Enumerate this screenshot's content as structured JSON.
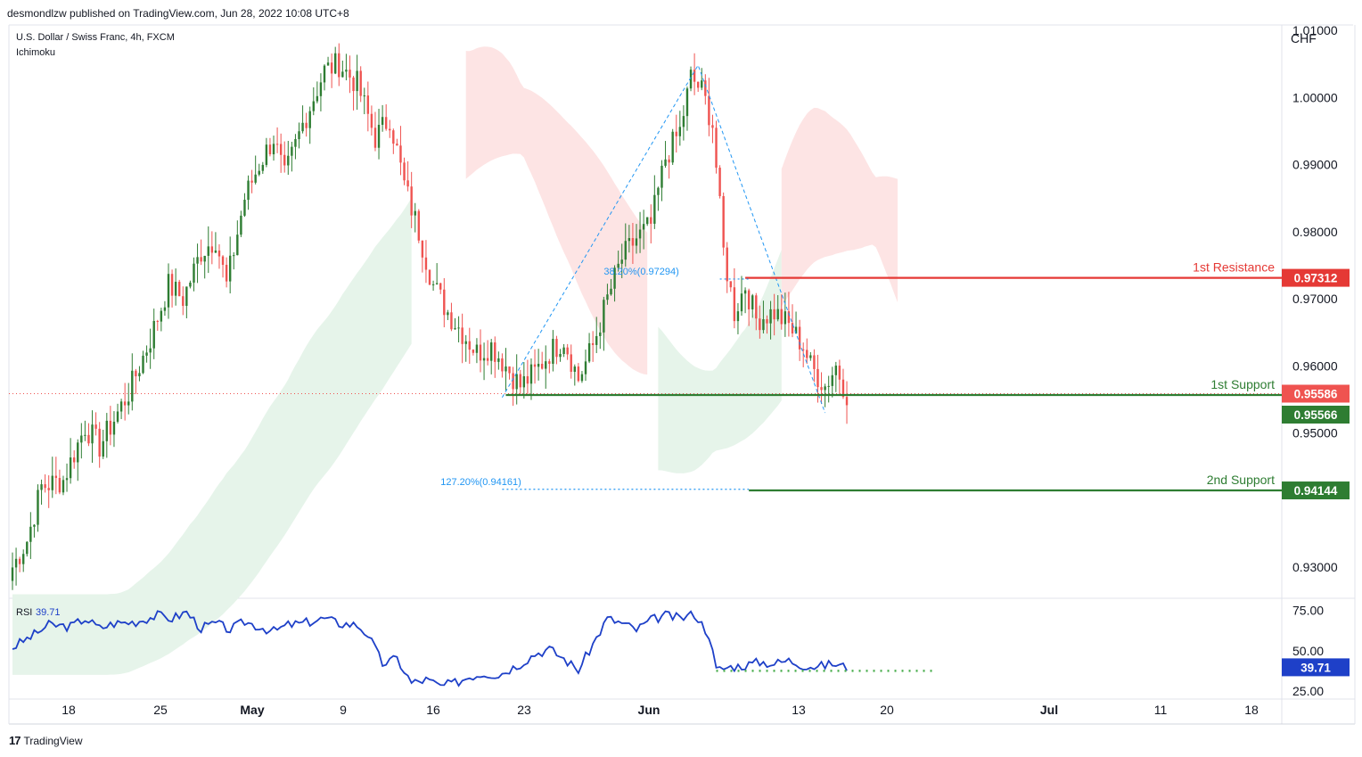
{
  "header": {
    "published": "desmondlzw published on TradingView.com, Jun 28, 2022 10:08 UTC+8"
  },
  "legend": {
    "symbol": "U.S. Dollar / Swiss Franc, 4h, FXCM",
    "indicator": "Ichimoku"
  },
  "footer": {
    "logo": "17",
    "brand": "TradingView"
  },
  "colors": {
    "bull": "#26a69a",
    "bear": "#ef5350",
    "bull_candle": "#2e7d32",
    "resistance": "#e53935",
    "support": "#2e7d32",
    "fib": "#2196f3",
    "rsi": "#1e40c8",
    "cloud_bull": "#e6f4ea",
    "cloud_bear": "#fde4e4"
  },
  "chart_data": [
    {
      "type": "candlestick",
      "title": "U.S. Dollar / Swiss Franc, 4h, FXCM",
      "currency_label": "CHF",
      "y_ticks": [
        "1.01000",
        "1.00000",
        "0.99000",
        "0.98000",
        "0.97000",
        "0.96000",
        "0.95000",
        "0.93000"
      ],
      "ylim": [
        0.9255,
        1.0108
      ],
      "x_ticks": [
        {
          "label": "18",
          "bold": false
        },
        {
          "label": "25",
          "bold": false
        },
        {
          "label": "May",
          "bold": true
        },
        {
          "label": "9",
          "bold": false
        },
        {
          "label": "16",
          "bold": false
        },
        {
          "label": "23",
          "bold": false
        },
        {
          "label": "Jun",
          "bold": true
        },
        {
          "label": "13",
          "bold": false
        },
        {
          "label": "20",
          "bold": false
        },
        {
          "label": "Jul",
          "bold": true
        },
        {
          "label": "11",
          "bold": false
        },
        {
          "label": "18",
          "bold": false
        }
      ],
      "price_path": [
        [
          0,
          0.93
        ],
        [
          4,
          0.934
        ],
        [
          8,
          0.942
        ],
        [
          14,
          0.943
        ],
        [
          20,
          0.951
        ],
        [
          24,
          0.948
        ],
        [
          28,
          0.952
        ],
        [
          32,
          0.956
        ],
        [
          38,
          0.964
        ],
        [
          43,
          0.972
        ],
        [
          47,
          0.97
        ],
        [
          52,
          0.977
        ],
        [
          56,
          0.979
        ],
        [
          59,
          0.972
        ],
        [
          64,
          0.985
        ],
        [
          68,
          0.99
        ],
        [
          72,
          0.994
        ],
        [
          75,
          0.988
        ],
        [
          80,
          0.996
        ],
        [
          86,
          1.004
        ],
        [
          90,
          1.005
        ],
        [
          95,
          1.002
        ],
        [
          100,
          0.994
        ],
        [
          104,
          0.997
        ],
        [
          108,
          0.987
        ],
        [
          112,
          0.98
        ],
        [
          116,
          0.972
        ],
        [
          120,
          0.968
        ],
        [
          124,
          0.965
        ],
        [
          128,
          0.962
        ],
        [
          132,
          0.963
        ],
        [
          136,
          0.96
        ],
        [
          140,
          0.957
        ],
        [
          144,
          0.959
        ],
        [
          148,
          0.962
        ],
        [
          152,
          0.964
        ],
        [
          156,
          0.958
        ],
        [
          160,
          0.963
        ],
        [
          164,
          0.97
        ],
        [
          168,
          0.976
        ],
        [
          172,
          0.979
        ],
        [
          176,
          0.981
        ],
        [
          180,
          0.991
        ],
        [
          184,
          0.995
        ],
        [
          187,
          1.003
        ],
        [
          190,
          1.001
        ],
        [
          193,
          0.996
        ],
        [
          196,
          0.977
        ],
        [
          199,
          0.968
        ],
        [
          202,
          0.972
        ],
        [
          205,
          0.967
        ],
        [
          210,
          0.968
        ],
        [
          214,
          0.966
        ],
        [
          218,
          0.963
        ],
        [
          220,
          0.96
        ],
        [
          224,
          0.957
        ],
        [
          227,
          0.96
        ],
        [
          230,
          0.9559
        ]
      ],
      "current_price": 0.95586,
      "cloud": [
        {
          "from": 0,
          "to": 110,
          "bias": "bullish"
        },
        {
          "from": 125,
          "to": 175,
          "bias": "bearish"
        },
        {
          "from": 178,
          "to": 212,
          "bias": "bullish"
        },
        {
          "from": 212,
          "to": 244,
          "bias": "bearish"
        }
      ],
      "levels": [
        {
          "label": "1st Resistance",
          "value": 0.97312,
          "price_label": "0.97312",
          "kind": "resistance"
        },
        {
          "label": "1st Support",
          "value": 0.95566,
          "price_label": "0.95566",
          "kind": "support"
        },
        {
          "label": "2nd Support",
          "value": 0.94144,
          "price_label": "0.94144",
          "kind": "support"
        }
      ],
      "current_price_label": "0.95586",
      "fib_levels": [
        {
          "label": "38.20%(0.97294)",
          "value": 0.97294
        },
        {
          "label": "127.20%(0.94161)",
          "value": 0.94161
        }
      ],
      "swing_points": [
        [
          135,
          0.9553
        ],
        [
          189,
          1.0048
        ],
        [
          224,
          0.953
        ]
      ]
    },
    {
      "type": "line",
      "title": "RSI",
      "series": [
        {
          "name": "RSI",
          "current_label": "39.71",
          "value": 39.71
        }
      ],
      "y_ticks": [
        "75.00",
        "50.00",
        "25.00"
      ],
      "ylim": [
        20,
        82
      ],
      "rsi_path": [
        [
          0,
          52
        ],
        [
          6,
          60
        ],
        [
          10,
          66
        ],
        [
          16,
          65
        ],
        [
          20,
          70
        ],
        [
          24,
          64
        ],
        [
          28,
          67
        ],
        [
          34,
          68
        ],
        [
          40,
          72
        ],
        [
          44,
          70
        ],
        [
          48,
          74
        ],
        [
          52,
          64
        ],
        [
          56,
          67
        ],
        [
          60,
          63
        ],
        [
          64,
          68
        ],
        [
          68,
          65
        ],
        [
          72,
          62
        ],
        [
          76,
          66
        ],
        [
          80,
          67
        ],
        [
          86,
          70
        ],
        [
          90,
          67
        ],
        [
          95,
          66
        ],
        [
          98,
          60
        ],
        [
          102,
          42
        ],
        [
          106,
          45
        ],
        [
          110,
          30
        ],
        [
          114,
          32
        ],
        [
          118,
          28
        ],
        [
          122,
          30
        ],
        [
          126,
          34
        ],
        [
          130,
          36
        ],
        [
          134,
          35
        ],
        [
          140,
          42
        ],
        [
          144,
          48
        ],
        [
          148,
          51
        ],
        [
          152,
          45
        ],
        [
          156,
          38
        ],
        [
          160,
          54
        ],
        [
          164,
          70
        ],
        [
          168,
          67
        ],
        [
          172,
          63
        ],
        [
          176,
          69
        ],
        [
          180,
          72
        ],
        [
          184,
          70
        ],
        [
          188,
          73
        ],
        [
          192,
          60
        ],
        [
          194,
          38
        ],
        [
          198,
          40
        ],
        [
          202,
          41
        ],
        [
          206,
          43
        ],
        [
          210,
          42
        ],
        [
          214,
          44
        ],
        [
          218,
          41
        ],
        [
          222,
          40
        ],
        [
          226,
          42
        ],
        [
          230,
          39.71
        ]
      ],
      "support_line": 37.5
    }
  ]
}
